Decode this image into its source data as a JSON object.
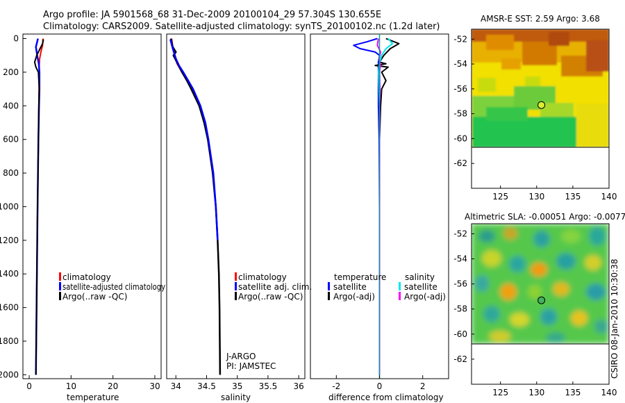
{
  "header": {
    "line1": "Argo profile: JA 5901568_68 31-Dec-2009 20100104_29 57.304S 130.655E",
    "line2": "Climatology: CARS2009. Satellite-adjusted climatology: synTS_20100102.nc (1.2d later)"
  },
  "colors": {
    "climatology": "#ff0000",
    "satellite": "#0000ff",
    "argo": "#000000",
    "sal_satellite": "#00e5ee",
    "sal_argo": "#ff00ff"
  },
  "depth_axis": {
    "ylim": [
      2050,
      0
    ],
    "ticks": [
      "0",
      "200",
      "400",
      "600",
      "800",
      "1000",
      "1200",
      "1400",
      "1600",
      "1800",
      "2000"
    ]
  },
  "chart_data": [
    {
      "id": "temperature",
      "type": "line",
      "xlabel": "temperature",
      "ylabel": "",
      "xlim": [
        -1.5,
        31.5
      ],
      "ylim": [
        2050,
        0
      ],
      "xticks": [
        "0",
        "10",
        "20",
        "30"
      ],
      "legend": [
        "climatology",
        "satellite-adjusted climatology",
        "Argo(..raw -QC)"
      ],
      "series": [
        {
          "name": "climatology",
          "depth": [
            0,
            40,
            80,
            120,
            160,
            200,
            300,
            400,
            600,
            1000,
            1500,
            2000
          ],
          "values": [
            3.3,
            3.2,
            2.8,
            2.5,
            2.4,
            2.4,
            2.35,
            2.3,
            2.2,
            2.0,
            1.8,
            1.6
          ]
        },
        {
          "name": "satellite-adjusted climatology",
          "depth": [
            0,
            20,
            50,
            100,
            150,
            200,
            300,
            400,
            600,
            1000,
            1500,
            2000
          ],
          "values": [
            2.1,
            1.9,
            1.6,
            1.9,
            2.3,
            2.45,
            2.45,
            2.35,
            2.2,
            2.0,
            1.8,
            1.6
          ]
        },
        {
          "name": "Argo(..raw -QC)",
          "depth": [
            5,
            30,
            60,
            100,
            140,
            170,
            200,
            300,
            400,
            600,
            1000,
            1500,
            2000
          ],
          "values": [
            3.4,
            3.2,
            2.6,
            1.8,
            1.3,
            1.6,
            2.2,
            2.4,
            2.3,
            2.2,
            2.0,
            1.8,
            1.6
          ]
        }
      ]
    },
    {
      "id": "salinity",
      "type": "line",
      "xlabel": "salinity",
      "xlim": [
        33.85,
        36.1
      ],
      "ylim": [
        2050,
        0
      ],
      "xticks": [
        "34",
        "34.5",
        "35",
        "35.5",
        "36"
      ],
      "legend": [
        "climatology",
        "satellite adj. clim.",
        "Argo(..raw -QC)"
      ],
      "annotations": [
        "J-ARGO",
        "PI: JAMSTEC"
      ],
      "series": [
        {
          "name": "climatology",
          "depth": [
            0,
            50,
            100,
            150,
            200,
            250,
            300,
            400,
            500,
            600,
            800,
            1000,
            1200,
            1400,
            1600,
            2000
          ],
          "values": [
            33.93,
            33.95,
            33.98,
            34.02,
            34.1,
            34.18,
            34.25,
            34.38,
            34.46,
            34.52,
            34.6,
            34.65,
            34.68,
            34.7,
            34.71,
            34.72
          ]
        },
        {
          "name": "satellite adj. clim.",
          "depth": [
            0,
            20,
            50,
            80,
            100,
            150,
            200,
            250,
            300,
            400,
            500,
            600,
            800,
            1000,
            1200,
            1400,
            1600,
            2000
          ],
          "values": [
            33.92,
            33.93,
            33.95,
            34.0,
            33.96,
            34.03,
            34.1,
            34.18,
            34.25,
            34.38,
            34.46,
            34.52,
            34.6,
            34.65,
            34.68,
            34.7,
            34.71,
            34.72
          ]
        },
        {
          "name": "Argo(..raw -QC)",
          "depth": [
            5,
            60,
            120,
            160,
            200,
            250,
            300,
            350,
            400,
            500,
            600,
            800,
            1000,
            1200
          ],
          "values": [
            33.91,
            33.95,
            34.0,
            34.05,
            34.12,
            34.2,
            34.28,
            34.34,
            34.4,
            34.48,
            34.53,
            34.61,
            34.65,
            34.68
          ]
        }
      ]
    },
    {
      "id": "difference",
      "type": "line",
      "xlabel": "difference from climatology",
      "xlim": [
        -3.2,
        3.2
      ],
      "ylim": [
        2050,
        0
      ],
      "xticks": [
        "-2",
        "0",
        "2"
      ],
      "legend_groups": [
        {
          "title": "temperature",
          "items": [
            "satellite",
            "Argo(-adj)"
          ]
        },
        {
          "title": "salinity",
          "items": [
            "satellite",
            "Argo(-adj)"
          ]
        }
      ],
      "series": [
        {
          "name": "temperature satellite",
          "depth": [
            0,
            20,
            40,
            60,
            80,
            100,
            140,
            200,
            400,
            600,
            1000,
            1500,
            2000
          ],
          "values": [
            -0.1,
            -0.6,
            -1.2,
            -0.9,
            -0.2,
            0.0,
            -0.05,
            -0.05,
            -0.05,
            -0.02,
            0.0,
            0.0,
            0.0
          ]
        },
        {
          "name": "temperature Argo(-adj)",
          "depth": [
            0,
            30,
            60,
            100,
            140,
            150,
            160,
            170,
            200,
            250,
            300,
            400,
            600,
            1000,
            1500,
            2000
          ],
          "values": [
            0.3,
            0.9,
            0.5,
            0.2,
            0.0,
            0.3,
            -0.2,
            0.4,
            0.1,
            0.3,
            0.1,
            0.05,
            0.0,
            0.0,
            0.0,
            0.0
          ]
        },
        {
          "name": "salinity satellite",
          "depth": [
            0,
            30,
            60,
            100,
            150,
            200,
            300,
            400,
            600,
            1000,
            1500,
            2000
          ],
          "values": [
            0.4,
            0.6,
            0.3,
            0.1,
            0.0,
            -0.05,
            -0.02,
            0.0,
            0.0,
            0.0,
            0.0,
            0.0
          ]
        },
        {
          "name": "salinity Argo(-adj)",
          "depth": [
            0,
            40,
            80,
            120,
            160,
            200,
            300,
            400,
            600,
            1000,
            1500,
            2000
          ],
          "values": [
            -0.05,
            -0.1,
            0.05,
            -0.02,
            0.04,
            0.0,
            0.02,
            0.0,
            0.0,
            0.0,
            0.0,
            0.0
          ]
        }
      ]
    },
    {
      "id": "sst-map",
      "type": "heatmap",
      "title": "AMSR-E SST: 2.59  Argo: 3.68",
      "xlim": [
        121,
        140
      ],
      "ylim": [
        -64,
        -51.2
      ],
      "xticks": [
        "125",
        "130",
        "135",
        "140"
      ],
      "yticks": [
        "-52",
        "-54",
        "-56",
        "-58",
        "-60",
        "-62"
      ],
      "data_extent_lat": [
        -60,
        -51.2
      ],
      "profile_location": {
        "lon": 130.655,
        "lat": -57.304
      }
    },
    {
      "id": "sla-map",
      "type": "heatmap",
      "title": "Altimetric SLA: -0.00051  Argo: -0.0077",
      "xlim": [
        121,
        140
      ],
      "ylim": [
        -64,
        -51.2
      ],
      "xticks": [
        "125",
        "130",
        "135",
        "140"
      ],
      "yticks": [
        "-52",
        "-54",
        "-56",
        "-58",
        "-60",
        "-62"
      ],
      "data_extent_lat": [
        -60,
        -51.2
      ],
      "profile_location": {
        "lon": 130.655,
        "lat": -57.304
      }
    }
  ],
  "footer": {
    "credit": "CSIRO 08-Jan-2010 10:30:38"
  }
}
